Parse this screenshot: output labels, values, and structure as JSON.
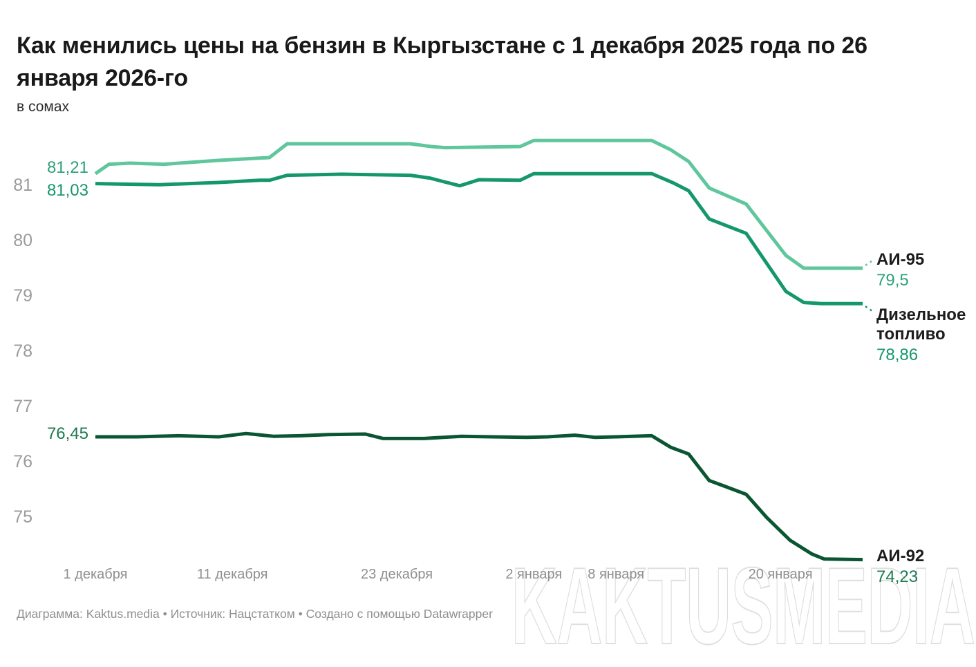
{
  "header": {
    "title": "Как менились цены на бензин в Кыргызстане с 1 декабря 2025 года по 26 января 2026-го",
    "subtitle": "в сомах"
  },
  "footer": {
    "attribution": "Диаграмма: Kaktus.media • Источник: Нацстатком • Создано с помощью Datawrapper"
  },
  "watermark": {
    "text": "KAKTUSMEDIA"
  },
  "chart_data": {
    "type": "line",
    "title": "Как менились цены на бензин в Кыргызстане с 1 декабря 2025 года по 26 января 2026-го",
    "subtitle": "в сомах",
    "grid": false,
    "background": "#ffffff",
    "legend_position": "direct-line-labels-right",
    "ylim": [
      74.0,
      82.0
    ],
    "y_ticks": [
      81,
      80,
      79,
      78,
      77,
      76,
      75
    ],
    "x_total_days": 56,
    "x_ticks": [
      {
        "day": 0,
        "label": "1 декабря"
      },
      {
        "day": 10,
        "label": "11 декабря"
      },
      {
        "day": 22,
        "label": "23 декабря"
      },
      {
        "day": 32,
        "label": "2 января"
      },
      {
        "day": 38,
        "label": "8 января"
      },
      {
        "day": 50,
        "label": "20 января"
      }
    ],
    "series": [
      {
        "id": "ai95",
        "name": "АИ-95",
        "color": "#5fc69d",
        "label_color": "#2fa17b",
        "start_value": 81.21,
        "end_value": 79.5,
        "start_value_label": "81,21",
        "end_value_label": "79,5",
        "connector": "up",
        "points": [
          [
            0,
            81.21
          ],
          [
            1,
            81.38
          ],
          [
            2.5,
            81.4
          ],
          [
            5,
            81.38
          ],
          [
            9,
            81.45
          ],
          [
            12.7,
            81.5
          ],
          [
            14,
            81.75
          ],
          [
            23,
            81.75
          ],
          [
            24.5,
            81.7
          ],
          [
            25.5,
            81.68
          ],
          [
            31,
            81.7
          ],
          [
            32,
            81.81
          ],
          [
            40.6,
            81.81
          ],
          [
            42,
            81.64
          ],
          [
            43.3,
            81.43
          ],
          [
            44.8,
            80.95
          ],
          [
            47.5,
            80.66
          ],
          [
            50.4,
            79.73
          ],
          [
            51.7,
            79.5
          ],
          [
            56,
            79.5
          ]
        ]
      },
      {
        "id": "diesel",
        "name": "Дизельное топливо",
        "color": "#15976d",
        "label_color": "#15976d",
        "start_value": 81.03,
        "end_value": 78.86,
        "start_value_label": "81,03",
        "end_value_label": "78,86",
        "connector": "down",
        "points": [
          [
            0,
            81.03
          ],
          [
            2,
            81.02
          ],
          [
            4.7,
            81.01
          ],
          [
            9,
            81.05
          ],
          [
            12,
            81.09
          ],
          [
            12.7,
            81.09
          ],
          [
            14,
            81.18
          ],
          [
            18,
            81.2
          ],
          [
            23,
            81.18
          ],
          [
            24.4,
            81.13
          ],
          [
            26.6,
            80.99
          ],
          [
            28,
            81.1
          ],
          [
            31,
            81.09
          ],
          [
            32,
            81.21
          ],
          [
            40.6,
            81.21
          ],
          [
            42.2,
            81.04
          ],
          [
            43.3,
            80.9
          ],
          [
            44.8,
            80.39
          ],
          [
            47.5,
            80.13
          ],
          [
            50.4,
            79.08
          ],
          [
            51.7,
            78.88
          ],
          [
            53,
            78.86
          ],
          [
            56,
            78.86
          ]
        ]
      },
      {
        "id": "ai92",
        "name": "АИ-92",
        "color": "#0a5532",
        "label_color": "#1d7a52",
        "start_value": 76.45,
        "end_value": 74.23,
        "start_value_label": "76,45",
        "end_value_label": "74,23",
        "connector": null,
        "points": [
          [
            0,
            76.45
          ],
          [
            3,
            76.45
          ],
          [
            6,
            76.47
          ],
          [
            9,
            76.45
          ],
          [
            11,
            76.51
          ],
          [
            13,
            76.46
          ],
          [
            15,
            76.47
          ],
          [
            17,
            76.49
          ],
          [
            19.7,
            76.5
          ],
          [
            21,
            76.42
          ],
          [
            24,
            76.42
          ],
          [
            26.7,
            76.46
          ],
          [
            29,
            76.45
          ],
          [
            31.5,
            76.44
          ],
          [
            33,
            76.45
          ],
          [
            35,
            76.48
          ],
          [
            36.5,
            76.44
          ],
          [
            38,
            76.45
          ],
          [
            40.6,
            76.47
          ],
          [
            42,
            76.26
          ],
          [
            43.3,
            76.14
          ],
          [
            44.8,
            75.66
          ],
          [
            46,
            75.55
          ],
          [
            47.5,
            75.41
          ],
          [
            49,
            74.99
          ],
          [
            50.7,
            74.58
          ],
          [
            52.3,
            74.33
          ],
          [
            53.2,
            74.24
          ],
          [
            56,
            74.23
          ]
        ]
      }
    ]
  }
}
